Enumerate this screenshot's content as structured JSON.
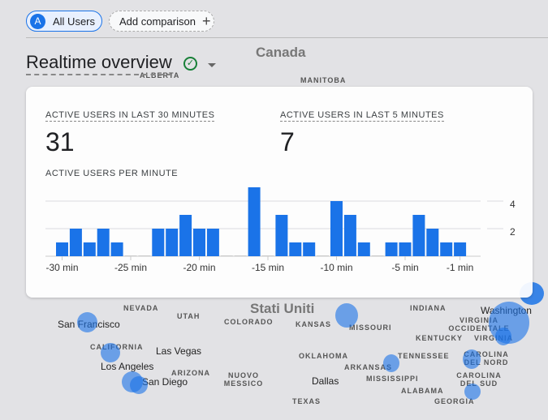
{
  "filters": {
    "segment_initial": "A",
    "segment_label": "All Users",
    "add_comparison": "Add comparison"
  },
  "header": {
    "title": "Realtime overview"
  },
  "metrics": [
    {
      "label": "ACTIVE USERS IN LAST 30 MINUTES",
      "value": "31"
    },
    {
      "label": "ACTIVE USERS IN LAST 5 MINUTES",
      "value": "7"
    }
  ],
  "chart_data": {
    "type": "bar",
    "title": "ACTIVE USERS PER MINUTE",
    "categories": [
      "-30 min",
      "-29",
      "-28",
      "-27",
      "-26",
      "-25 min",
      "-24",
      "-23",
      "-22",
      "-21",
      "-20 min",
      "-19",
      "-18",
      "-17",
      "-16",
      "-15 min",
      "-14",
      "-13",
      "-12",
      "-11",
      "-10 min",
      "-9",
      "-8",
      "-7",
      "-6",
      "-5 min",
      "-4",
      "-3",
      "-2",
      "-1 min"
    ],
    "values": [
      1,
      2,
      1,
      2,
      1,
      0,
      0,
      2,
      2,
      3,
      2,
      2,
      0,
      0,
      5,
      0,
      3,
      1,
      1,
      0,
      4,
      3,
      1,
      0,
      1,
      1,
      3,
      2,
      1,
      1
    ],
    "x_tick_labels": [
      "-30 min",
      "-25 min",
      "-20 min",
      "-15 min",
      "-10 min",
      "-5 min",
      "-1 min"
    ],
    "y_ticks": [
      "2",
      "4"
    ],
    "y_axis": "right",
    "grid": true,
    "color": "#1a73e8"
  },
  "map": {
    "countries": [
      "Canada",
      "Stati Uniti"
    ],
    "regions": [
      "ALBERTA",
      "MANITOBA",
      "NEVADA",
      "UTAH",
      "COLORADO",
      "KANSAS",
      "MISSOURI",
      "INDIANA",
      "VIRGINIA OCCIDENTALE",
      "KENTUCKY",
      "VIRGINIA",
      "CALIFORNIA",
      "ARIZONA",
      "NUOVO MESSICO",
      "OKLAHOMA",
      "ARKANSAS",
      "TENNESSEE",
      "CAROLINA DEL NORD",
      "CAROLINA DEL SUD",
      "MISSISSIPPI",
      "ALABAMA",
      "GEORGIA",
      "TEXAS"
    ],
    "cities": [
      "San Francisco",
      "Las Vegas",
      "Los Angeles",
      "San Diego",
      "Dallas",
      "Washington"
    ]
  }
}
